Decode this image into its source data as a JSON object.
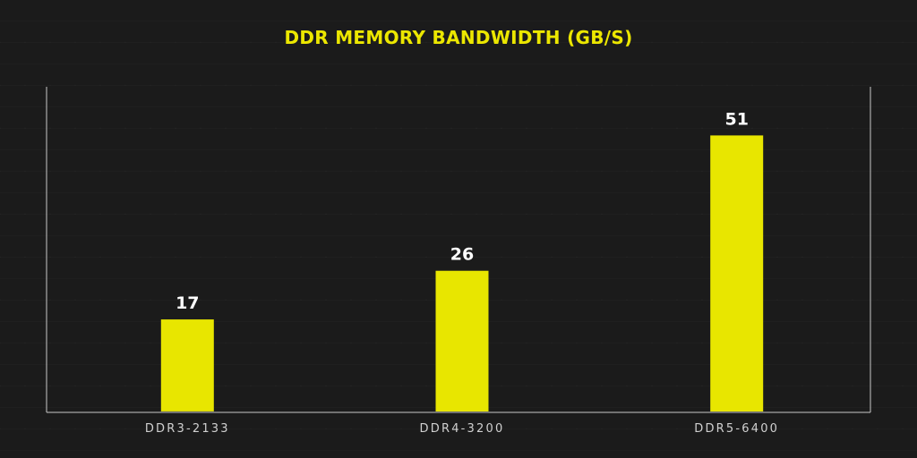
{
  "chart_data": {
    "type": "bar",
    "title": "DDR MEMORY BANDWIDTH (GB/S)",
    "categories": [
      "DDR3-2133",
      "DDR4-3200",
      "DDR5-6400"
    ],
    "values": [
      17,
      26,
      51
    ],
    "data_labels": [
      "17",
      "26",
      "51"
    ],
    "xlabel": "",
    "ylabel": "",
    "ylim": [
      0,
      60
    ],
    "grid": false,
    "legend": "none",
    "colors": {
      "bar": "#e8e600",
      "title": "#ece700",
      "axis": "#c8c8c8",
      "background": "#1b1b1b"
    }
  }
}
